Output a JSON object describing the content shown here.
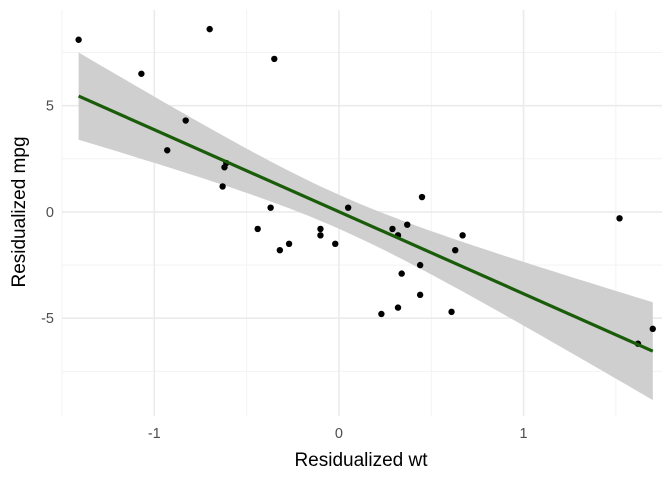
{
  "chart_data": {
    "type": "scatter",
    "title": "",
    "xlabel": "Residualized wt",
    "ylabel": "Residualized mpg",
    "xlim": [
      -1.5,
      1.75
    ],
    "ylim": [
      -9.6,
      9.5
    ],
    "x_ticks": [
      -1,
      0,
      1
    ],
    "x_tick_labels": [
      "-1",
      "0",
      "1"
    ],
    "y_ticks": [
      -5,
      0,
      5
    ],
    "y_tick_labels": [
      "-5",
      "0",
      "5"
    ],
    "grid": true,
    "legend": "none",
    "points": [
      {
        "x": -1.41,
        "y": 8.1
      },
      {
        "x": -1.07,
        "y": 6.5
      },
      {
        "x": -0.93,
        "y": 2.9
      },
      {
        "x": -0.83,
        "y": 4.3
      },
      {
        "x": -0.7,
        "y": 8.6
      },
      {
        "x": -0.63,
        "y": 1.2
      },
      {
        "x": -0.62,
        "y": 2.1
      },
      {
        "x": -0.61,
        "y": 2.3
      },
      {
        "x": -0.44,
        "y": -0.8
      },
      {
        "x": -0.37,
        "y": 0.2
      },
      {
        "x": -0.35,
        "y": 7.2
      },
      {
        "x": -0.32,
        "y": -1.8
      },
      {
        "x": -0.27,
        "y": -1.5
      },
      {
        "x": -0.1,
        "y": -0.8
      },
      {
        "x": -0.1,
        "y": -1.1
      },
      {
        "x": -0.02,
        "y": -1.5
      },
      {
        "x": 0.05,
        "y": 0.2
      },
      {
        "x": 0.23,
        "y": -4.8
      },
      {
        "x": 0.29,
        "y": -0.8
      },
      {
        "x": 0.32,
        "y": -4.5
      },
      {
        "x": 0.32,
        "y": -1.1
      },
      {
        "x": 0.34,
        "y": -2.9
      },
      {
        "x": 0.37,
        "y": -0.6
      },
      {
        "x": 0.44,
        "y": -3.9
      },
      {
        "x": 0.44,
        "y": -2.5
      },
      {
        "x": 0.45,
        "y": 0.7
      },
      {
        "x": 0.61,
        "y": -4.7
      },
      {
        "x": 0.63,
        "y": -1.8
      },
      {
        "x": 0.67,
        "y": -1.1
      },
      {
        "x": 1.52,
        "y": -0.3
      },
      {
        "x": 1.62,
        "y": -6.2
      },
      {
        "x": 1.7,
        "y": -5.5
      }
    ],
    "regression": {
      "x": [
        -1.41,
        1.7
      ],
      "y": [
        5.45,
        -6.55
      ],
      "band_lower": [
        3.4,
        -8.9
      ],
      "band_upper": [
        7.5,
        -4.3
      ],
      "band_mid": {
        "x": 0.0,
        "lower": -0.8,
        "upper": 0.8
      }
    },
    "colors": {
      "line": "#1a5c0a",
      "band": "#cfcfcf",
      "points": "#000000",
      "grid_major": "#ebebeb",
      "grid_minor": "#f3f3f3"
    }
  }
}
